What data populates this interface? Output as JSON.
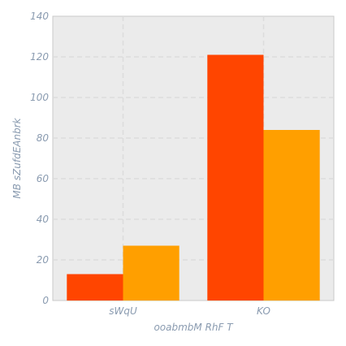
{
  "chart_data": {
    "type": "bar",
    "title": "",
    "xlabel": "ooabmbM RhF T",
    "ylabel": "MB sZufdEAnbrk",
    "categories": [
      "sWqU",
      "KO"
    ],
    "series": [
      {
        "values": [
          13,
          121
        ],
        "color": "#ff4500"
      },
      {
        "values": [
          27,
          84
        ],
        "color": "#ff9f00"
      }
    ],
    "ylim": [
      0,
      140
    ],
    "yticks": [
      0,
      20,
      40,
      60,
      80,
      100,
      120,
      140
    ],
    "grid": true,
    "background": "#ebebeb",
    "legend": "none"
  }
}
